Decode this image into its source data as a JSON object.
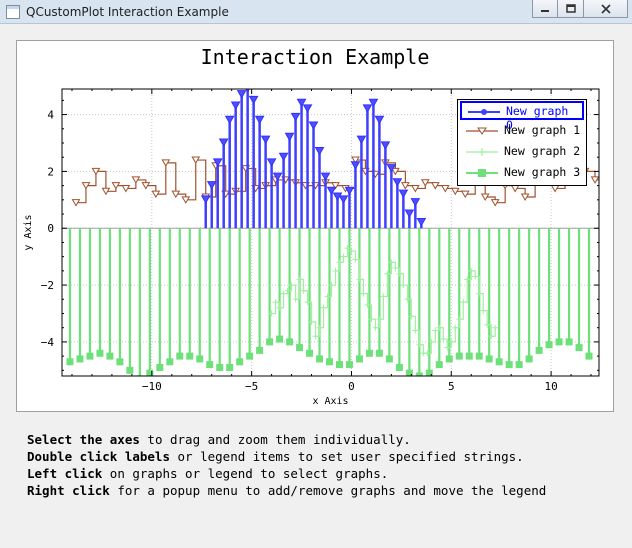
{
  "window": {
    "title": "QCustomPlot Interaction Example"
  },
  "plot": {
    "title": "Interaction Example"
  },
  "instructions": [
    {
      "bold": "Select the axes",
      "rest": " to drag and zoom them individually."
    },
    {
      "bold": "Double click labels",
      "rest": " or legend items to set user specified strings."
    },
    {
      "bold": "Left click",
      "rest": " on graphs or legend to select graphs."
    },
    {
      "bold": "Right click",
      "rest": " for a popup menu to add/remove graphs and move the legend"
    }
  ],
  "chart_data": {
    "type": "line",
    "title": "Interaction Example",
    "xlabel": "x Axis",
    "ylabel": "y Axis",
    "xlim": [
      -14.5,
      12.4
    ],
    "ylim": [
      -5.2,
      4.9
    ],
    "xticks": [
      -10,
      -5,
      0,
      5,
      10
    ],
    "yticks": [
      -4,
      -2,
      0,
      2,
      4
    ],
    "grid": true,
    "legend_position": "top-right",
    "series": [
      {
        "name": "New graph 0",
        "style": "impulse",
        "marker": "triangle-down",
        "color": "#3f3fff",
        "selected": true,
        "x": [
          -7.3,
          -7.0,
          -6.7,
          -6.4,
          -6.1,
          -5.8,
          -5.5,
          -5.2,
          -4.9,
          -4.6,
          -4.3,
          -4.0,
          -3.7,
          -3.4,
          -3.1,
          -2.8,
          -2.5,
          -2.2,
          -1.9,
          -1.6,
          -1.3,
          -1.0,
          -0.7,
          -0.4,
          -0.1,
          0.2,
          0.5,
          0.8,
          1.1,
          1.4,
          1.7,
          2.0,
          2.3,
          2.6,
          2.9,
          3.2,
          3.5
        ],
        "y": [
          1.0,
          1.5,
          2.3,
          3.0,
          3.8,
          4.3,
          4.7,
          4.9,
          4.5,
          3.8,
          3.1,
          2.3,
          1.8,
          2.5,
          3.2,
          3.9,
          4.4,
          4.2,
          3.6,
          2.7,
          1.8,
          1.3,
          1.1,
          1.0,
          1.3,
          2.2,
          3.1,
          4.2,
          4.4,
          3.8,
          2.9,
          2.1,
          1.6,
          1.2,
          0.5,
          0.9,
          0.2
        ]
      },
      {
        "name": "New graph 1",
        "style": "step",
        "marker": "triangle-down",
        "color": "#a0522d",
        "x": [
          -13.8,
          -13.3,
          -12.8,
          -12.3,
          -11.8,
          -11.3,
          -10.8,
          -10.3,
          -9.8,
          -9.3,
          -8.8,
          -8.3,
          -7.8,
          -7.3,
          -6.8,
          -6.3,
          -5.8,
          -5.3,
          -4.8,
          -4.3,
          -3.8,
          -3.3,
          -2.8,
          -2.3,
          -1.8,
          -1.3,
          -0.8,
          -0.3,
          0.2,
          0.7,
          1.2,
          1.7,
          2.2,
          2.7,
          3.2,
          3.7,
          4.2,
          4.7,
          5.2,
          5.7,
          6.2,
          6.7,
          7.2,
          7.7,
          8.2,
          8.7,
          9.2,
          9.7,
          10.2,
          10.7,
          11.2,
          11.7,
          12.2
        ],
        "y": [
          0.9,
          1.5,
          2.0,
          1.3,
          1.5,
          1.4,
          1.7,
          1.5,
          1.2,
          2.3,
          1.2,
          1.0,
          2.4,
          1.1,
          2.2,
          1.2,
          1.3,
          2.1,
          1.4,
          1.5,
          1.7,
          1.7,
          1.6,
          1.5,
          1.5,
          1.6,
          1.5,
          1.4,
          2.4,
          2.0,
          1.9,
          2.3,
          2.0,
          1.5,
          1.4,
          1.6,
          1.5,
          1.4,
          1.3,
          1.2,
          1.8,
          1.1,
          0.9,
          1.5,
          1.4,
          1.1,
          1.8,
          1.7,
          1.4,
          1.8,
          1.7,
          2.0,
          1.7
        ]
      },
      {
        "name": "New graph 2",
        "style": "step",
        "marker": "plus",
        "color": "#a0f0a0",
        "x": [
          -4.0,
          -3.8,
          -3.6,
          -3.4,
          -3.2,
          -3.0,
          -2.8,
          -2.6,
          -2.4,
          -2.2,
          -2.0,
          -1.8,
          -1.6,
          -1.4,
          -1.2,
          -1.0,
          -0.8,
          -0.6,
          -0.4,
          -0.2,
          0.0,
          0.2,
          0.4,
          0.6,
          0.8,
          1.0,
          1.2,
          1.4,
          1.6,
          1.8,
          2.0,
          2.2,
          2.4,
          2.6,
          2.8,
          3.0,
          3.2,
          3.4,
          3.6,
          3.8,
          4.0,
          4.2,
          4.4,
          4.6,
          4.8,
          5.0,
          5.2,
          5.4,
          5.6,
          5.8,
          6.0,
          6.2,
          6.4,
          6.6,
          6.8,
          7.0,
          7.2
        ],
        "y": [
          -3.0,
          -2.6,
          -2.8,
          -2.3,
          -2.2,
          -2.0,
          -2.5,
          -1.8,
          -2.2,
          -2.6,
          -3.3,
          -3.8,
          -3.5,
          -2.8,
          -2.4,
          -2.0,
          -1.5,
          -1.2,
          -1.0,
          -0.7,
          -0.8,
          -1.1,
          -1.8,
          -2.3,
          -2.7,
          -3.2,
          -3.5,
          -3.2,
          -2.4,
          -1.6,
          -1.2,
          -1.4,
          -1.6,
          -2.0,
          -2.5,
          -3.1,
          -3.6,
          -4.1,
          -4.4,
          -4.4,
          -4.0,
          -3.6,
          -3.5,
          -3.9,
          -4.2,
          -4.0,
          -3.5,
          -3.2,
          -2.6,
          -1.8,
          -1.5,
          -1.7,
          -2.3,
          -2.9,
          -3.4,
          -3.8,
          -3.5
        ]
      },
      {
        "name": "New graph 3",
        "style": "impulse",
        "marker": "square",
        "color": "#6ee07a",
        "x": [
          -14.1,
          -13.6,
          -13.1,
          -12.6,
          -12.1,
          -11.6,
          -11.1,
          -10.6,
          -10.1,
          -9.6,
          -9.1,
          -8.6,
          -8.1,
          -7.6,
          -7.1,
          -6.6,
          -6.1,
          -5.6,
          -5.1,
          -4.6,
          -4.1,
          -3.6,
          -3.1,
          -2.6,
          -2.1,
          -1.6,
          -1.1,
          -0.6,
          -0.1,
          0.4,
          0.9,
          1.4,
          1.9,
          2.4,
          2.9,
          3.4,
          3.9,
          4.4,
          4.9,
          5.4,
          5.9,
          6.4,
          6.9,
          7.4,
          7.9,
          8.4,
          8.9,
          9.4,
          9.9,
          10.4,
          10.9,
          11.4,
          11.9
        ],
        "y": [
          -4.7,
          -4.6,
          -4.5,
          -4.4,
          -4.5,
          -4.7,
          -5.0,
          -5.3,
          -5.1,
          -4.9,
          -4.7,
          -4.5,
          -4.5,
          -4.6,
          -4.8,
          -4.9,
          -4.9,
          -4.7,
          -4.5,
          -4.3,
          -4.0,
          -3.9,
          -4.0,
          -4.2,
          -4.4,
          -4.6,
          -4.7,
          -4.8,
          -4.8,
          -4.6,
          -4.4,
          -4.4,
          -4.6,
          -4.9,
          -5.1,
          -5.2,
          -5.1,
          -4.8,
          -4.6,
          -4.5,
          -4.5,
          -4.5,
          -4.6,
          -4.7,
          -4.8,
          -4.8,
          -4.6,
          -4.3,
          -4.1,
          -4.0,
          -4.0,
          -4.2,
          -4.5
        ]
      }
    ]
  }
}
